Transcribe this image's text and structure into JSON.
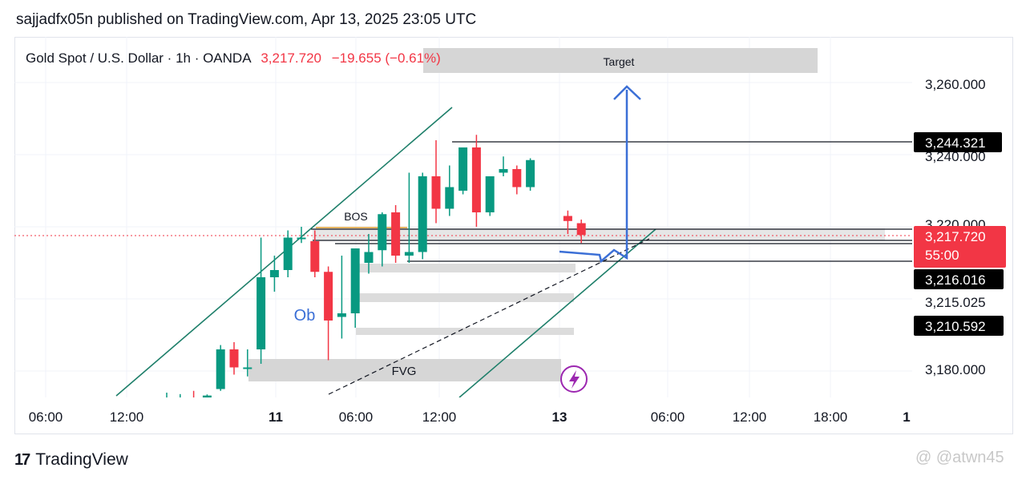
{
  "header": {
    "published_text": "sajjadfx05n published on TradingView.com, Apr 13, 2025 23:05 UTC"
  },
  "legend": {
    "symbol": "Gold Spot / U.S. Dollar · 1h · OANDA",
    "price": "3,217.720",
    "change": "−19.655 (−0.61%)"
  },
  "colors": {
    "up": "#089981",
    "down": "#f23645",
    "price_label_bg": "#f23645",
    "marker_bg": "#000000",
    "channel": "#1e7f6a",
    "arrow": "#3b6fd6",
    "zone": "#d6d6d6"
  },
  "annotations": {
    "target": "Target",
    "bos": "BOS",
    "ob": "Ob",
    "fvg": "FVG"
  },
  "chart_data": {
    "type": "candlestick",
    "symbol": "XAUUSD",
    "timeframe": "1h",
    "y_ticks": [
      "3,260.000",
      "3,240.000",
      "3,220.000",
      "3,215.025",
      "3,180.000"
    ],
    "x_ticks": [
      "06:00",
      "12:00",
      "11",
      "06:00",
      "12:00",
      "13",
      "06:00",
      "12:00",
      "18:00",
      "1"
    ],
    "price_markers": [
      {
        "label": "3,244.321",
        "value": 3244.321
      },
      {
        "label": "3,216.016",
        "value": 3216.016
      },
      {
        "label": "3,210.592",
        "value": 3210.592
      }
    ],
    "current_price": {
      "label": "3,217.720",
      "countdown": "55:00",
      "value": 3217.72
    },
    "candles": [
      {
        "o": 3171.0,
        "h": 3174.0,
        "l": 3169.5,
        "c": 3172.3
      },
      {
        "o": 3171.2,
        "h": 3173.6,
        "l": 3170.1,
        "c": 3171.8
      },
      {
        "o": 3172.4,
        "h": 3174.5,
        "l": 3171.3,
        "c": 3171.8
      },
      {
        "o": 3170.8,
        "h": 3173.5,
        "l": 3169.9,
        "c": 3173.2
      },
      {
        "o": 3175.0,
        "h": 3187.2,
        "l": 3174.5,
        "c": 3186.0
      },
      {
        "o": 3186.0,
        "h": 3188.0,
        "l": 3179.0,
        "c": 3181.0
      },
      {
        "o": 3181.0,
        "h": 3186.0,
        "l": 3178.5,
        "c": 3181.0
      },
      {
        "o": 3186.0,
        "h": 3217.0,
        "l": 3182.0,
        "c": 3206.0
      },
      {
        "o": 3206.0,
        "h": 3212.0,
        "l": 3202.0,
        "c": 3208.0
      },
      {
        "o": 3208.0,
        "h": 3219.0,
        "l": 3206.0,
        "c": 3217.0
      },
      {
        "o": 3216.8,
        "h": 3220.0,
        "l": 3215.5,
        "c": 3217.0
      },
      {
        "o": 3216.0,
        "h": 3219.0,
        "l": 3206.0,
        "c": 3207.5
      },
      {
        "o": 3207.5,
        "h": 3209.0,
        "l": 3183.0,
        "c": 3194.0
      },
      {
        "o": 3195.0,
        "h": 3212.0,
        "l": 3189.0,
        "c": 3196.0
      },
      {
        "o": 3196.0,
        "h": 3214.0,
        "l": 3192.0,
        "c": 3214.0
      },
      {
        "o": 3210.0,
        "h": 3218.0,
        "l": 3207.0,
        "c": 3213.0
      },
      {
        "o": 3213.5,
        "h": 3224.0,
        "l": 3209.0,
        "c": 3223.5
      },
      {
        "o": 3224.0,
        "h": 3226.0,
        "l": 3210.0,
        "c": 3212.0
      },
      {
        "o": 3212.0,
        "h": 3235.0,
        "l": 3210.0,
        "c": 3213.0
      },
      {
        "o": 3213.0,
        "h": 3235.0,
        "l": 3211.0,
        "c": 3234.0
      },
      {
        "o": 3234.0,
        "h": 3244.0,
        "l": 3221.0,
        "c": 3225.0
      },
      {
        "o": 3225.0,
        "h": 3237.0,
        "l": 3223.0,
        "c": 3231.0
      },
      {
        "o": 3230.0,
        "h": 3242.0,
        "l": 3229.0,
        "c": 3242.0
      },
      {
        "o": 3242.0,
        "h": 3245.5,
        "l": 3220.0,
        "c": 3224.0
      },
      {
        "o": 3224.0,
        "h": 3234.0,
        "l": 3223.0,
        "c": 3234.0
      },
      {
        "o": 3235.0,
        "h": 3239.5,
        "l": 3234.0,
        "c": 3236.0
      },
      {
        "o": 3236.0,
        "h": 3237.0,
        "l": 3229.0,
        "c": 3231.0
      },
      {
        "o": 3231.0,
        "h": 3239.0,
        "l": 3230.0,
        "c": 3238.5
      },
      {
        "o": 3223.0,
        "h": 3224.5,
        "l": 3218.0,
        "c": 3221.6
      },
      {
        "o": 3221.0,
        "h": 3222.0,
        "l": 3215.5,
        "c": 3217.72
      }
    ]
  }
}
